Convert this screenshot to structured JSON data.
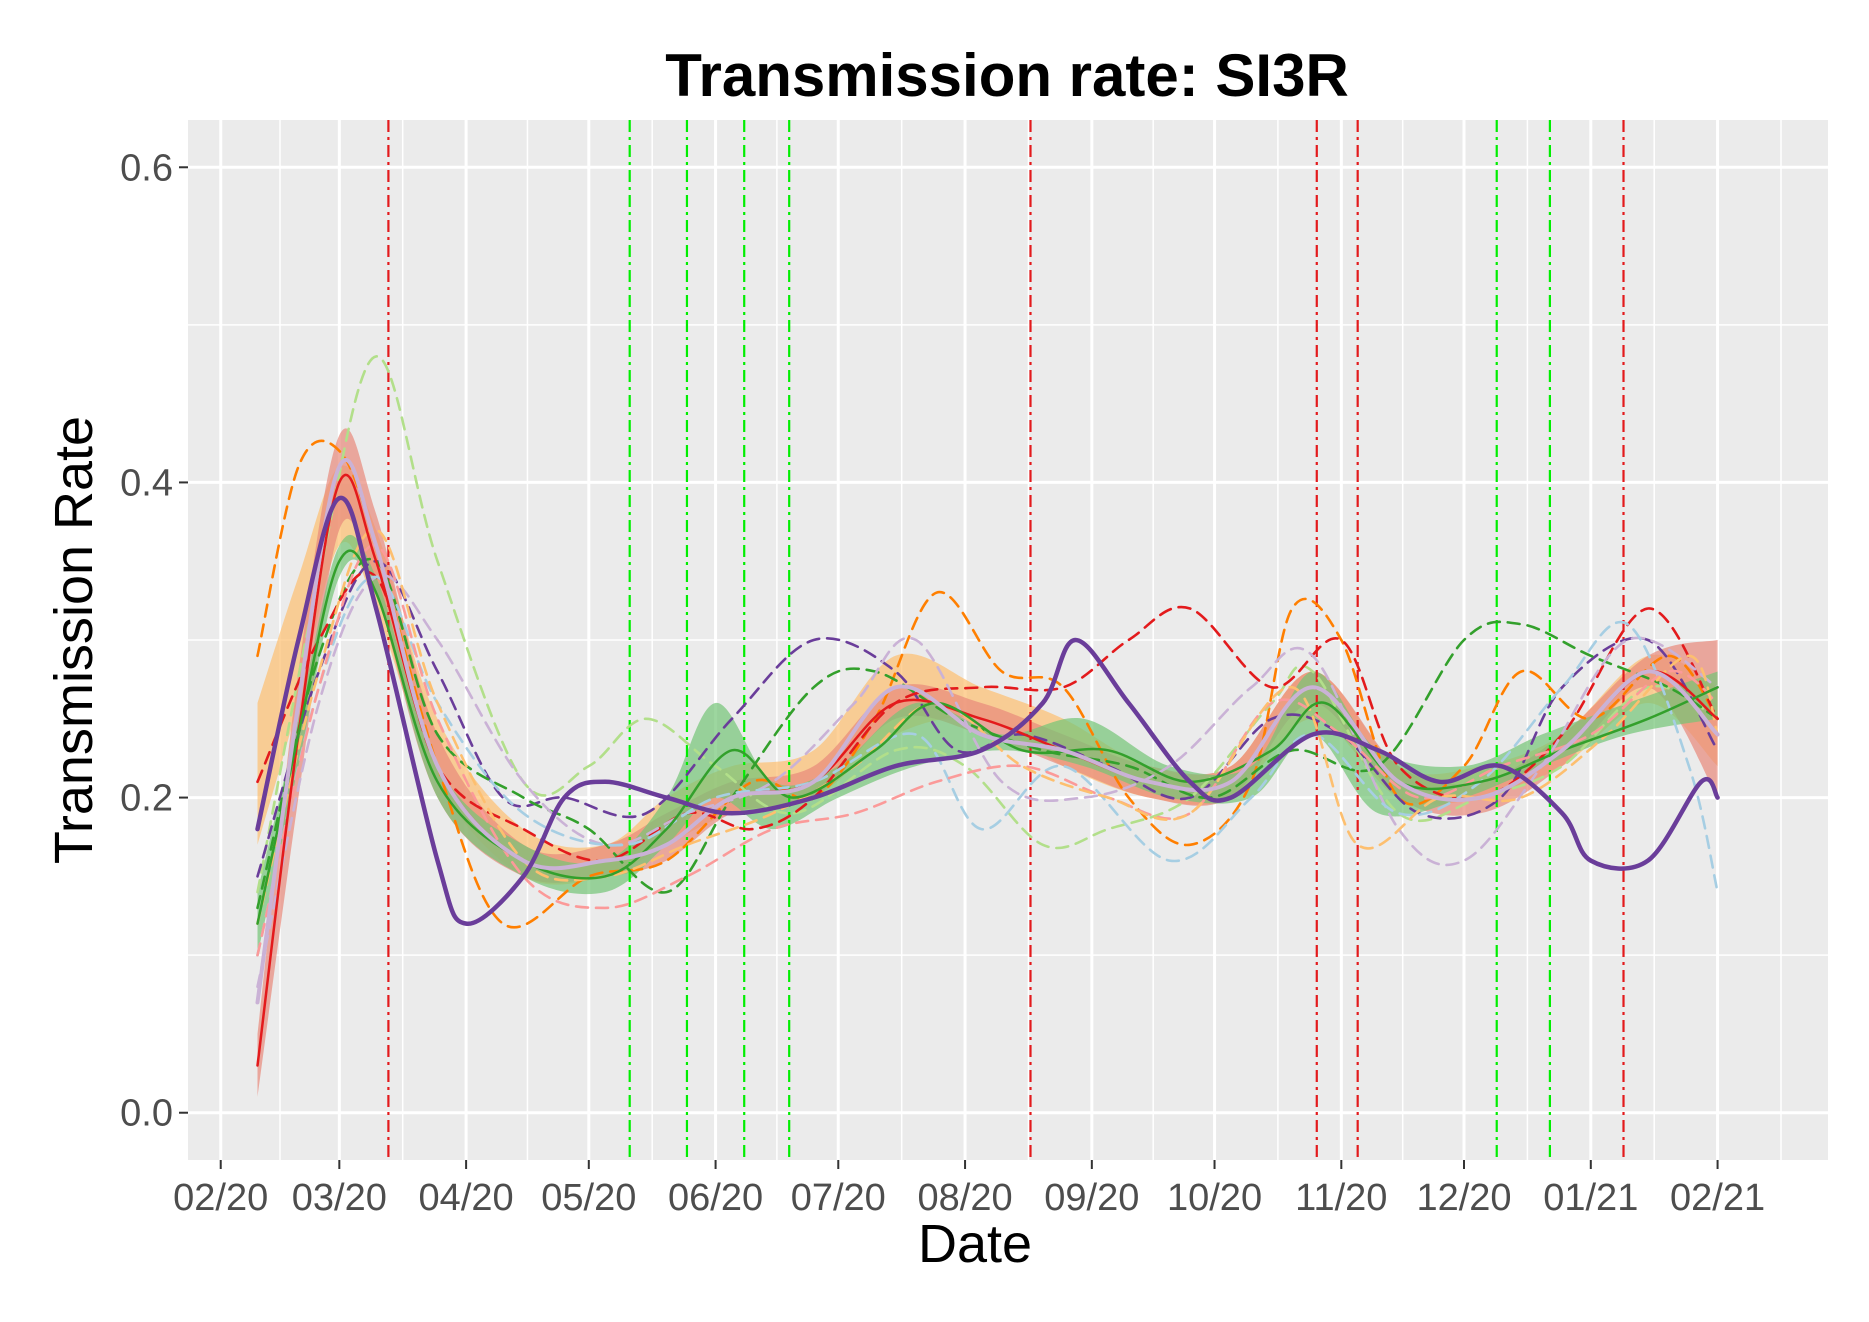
{
  "chart_data": {
    "type": "line",
    "title": "Transmission rate: SI3R",
    "xlabel": "Date",
    "ylabel": "Transmission Rate",
    "ylim": [
      -0.03,
      0.63
    ],
    "xlim": [
      "2020-01-24",
      "2021-02-28"
    ],
    "grid": true,
    "legend": "none",
    "y_ticks": [
      {
        "label": "0.0",
        "value": 0.0
      },
      {
        "label": "0.2",
        "value": 0.2
      },
      {
        "label": "0.4",
        "value": 0.4
      },
      {
        "label": "0.6",
        "value": 0.6
      }
    ],
    "x_ticks": [
      {
        "label": "02/20",
        "value": "2020-02-01"
      },
      {
        "label": "03/20",
        "value": "2020-03-01"
      },
      {
        "label": "04/20",
        "value": "2020-04-01"
      },
      {
        "label": "05/20",
        "value": "2020-05-01"
      },
      {
        "label": "06/20",
        "value": "2020-06-01"
      },
      {
        "label": "07/20",
        "value": "2020-07-01"
      },
      {
        "label": "08/20",
        "value": "2020-08-01"
      },
      {
        "label": "09/20",
        "value": "2020-09-01"
      },
      {
        "label": "10/20",
        "value": "2020-10-01"
      },
      {
        "label": "11/20",
        "value": "2020-11-01"
      },
      {
        "label": "12/20",
        "value": "2020-12-01"
      },
      {
        "label": "01/21",
        "value": "2021-01-01"
      },
      {
        "label": "02/21",
        "value": "2021-02-01"
      }
    ],
    "vlines": [
      {
        "date": "2020-03-13",
        "color": "#e31a1c"
      },
      {
        "date": "2020-05-11",
        "color": "#00ee00"
      },
      {
        "date": "2020-05-25",
        "color": "#00ee00"
      },
      {
        "date": "2020-06-08",
        "color": "#00ee00"
      },
      {
        "date": "2020-06-19",
        "color": "#00ee00"
      },
      {
        "date": "2020-08-17",
        "color": "#e31a1c"
      },
      {
        "date": "2020-10-26",
        "color": "#e31a1c"
      },
      {
        "date": "2020-11-05",
        "color": "#e31a1c"
      },
      {
        "date": "2020-12-09",
        "color": "#00ee00"
      },
      {
        "date": "2020-12-22",
        "color": "#00ee00"
      },
      {
        "date": "2021-01-09",
        "color": "#e31a1c"
      }
    ],
    "bands": [
      {
        "color": "#fdbf6f",
        "x": [
          "2020-02-10",
          "2020-02-20",
          "2020-03-01",
          "2020-03-10",
          "2020-03-25",
          "2020-04-15",
          "2020-05-05",
          "2020-05-20",
          "2020-06-05",
          "2020-06-25",
          "2020-07-15",
          "2020-08-05",
          "2020-08-25",
          "2020-09-15",
          "2020-10-05",
          "2020-10-25",
          "2020-11-15",
          "2020-12-05",
          "2020-12-25",
          "2021-01-15",
          "2021-02-01"
        ],
        "lower": [
          0.17,
          0.26,
          0.36,
          0.32,
          0.21,
          0.15,
          0.15,
          0.17,
          0.19,
          0.2,
          0.24,
          0.25,
          0.22,
          0.2,
          0.2,
          0.25,
          0.2,
          0.2,
          0.22,
          0.26,
          0.22
        ],
        "upper": [
          0.26,
          0.34,
          0.41,
          0.37,
          0.25,
          0.18,
          0.17,
          0.2,
          0.22,
          0.23,
          0.29,
          0.27,
          0.25,
          0.22,
          0.22,
          0.28,
          0.22,
          0.22,
          0.24,
          0.29,
          0.27
        ]
      },
      {
        "color": "#e8897a",
        "x": [
          "2020-02-10",
          "2020-02-20",
          "2020-03-01",
          "2020-03-10",
          "2020-03-25",
          "2020-04-15",
          "2020-05-05",
          "2020-05-20",
          "2020-06-05",
          "2020-06-25",
          "2020-07-15",
          "2020-08-05",
          "2020-08-25",
          "2020-09-15",
          "2020-10-05",
          "2020-10-25",
          "2020-11-15",
          "2020-12-05",
          "2020-12-25",
          "2021-01-15",
          "2021-02-01"
        ],
        "lower": [
          0.01,
          0.2,
          0.37,
          0.33,
          0.2,
          0.15,
          0.15,
          0.16,
          0.19,
          0.2,
          0.25,
          0.24,
          0.22,
          0.2,
          0.2,
          0.26,
          0.2,
          0.19,
          0.22,
          0.27,
          0.2
        ],
        "upper": [
          0.05,
          0.28,
          0.43,
          0.38,
          0.24,
          0.17,
          0.17,
          0.19,
          0.21,
          0.22,
          0.27,
          0.26,
          0.24,
          0.22,
          0.22,
          0.28,
          0.22,
          0.21,
          0.24,
          0.29,
          0.3
        ]
      },
      {
        "color": "#74c476",
        "x": [
          "2020-02-10",
          "2020-02-20",
          "2020-03-01",
          "2020-03-10",
          "2020-03-25",
          "2020-04-15",
          "2020-05-05",
          "2020-05-20",
          "2020-06-01",
          "2020-06-15",
          "2020-07-01",
          "2020-07-20",
          "2020-08-10",
          "2020-08-30",
          "2020-09-20",
          "2020-10-10",
          "2020-10-25",
          "2020-11-10",
          "2020-12-01",
          "2020-12-20",
          "2021-01-10",
          "2021-02-01"
        ],
        "lower": [
          0.1,
          0.22,
          0.34,
          0.33,
          0.2,
          0.15,
          0.14,
          0.17,
          0.2,
          0.18,
          0.2,
          0.22,
          0.23,
          0.22,
          0.2,
          0.2,
          0.24,
          0.19,
          0.2,
          0.22,
          0.24,
          0.25
        ],
        "upper": [
          0.14,
          0.25,
          0.36,
          0.34,
          0.22,
          0.17,
          0.16,
          0.2,
          0.26,
          0.21,
          0.22,
          0.26,
          0.24,
          0.25,
          0.22,
          0.22,
          0.28,
          0.23,
          0.22,
          0.24,
          0.26,
          0.28
        ]
      }
    ],
    "series": [
      {
        "color": "#ff7f00",
        "dash": true,
        "x": [
          "2020-02-10",
          "2020-02-20",
          "2020-03-01",
          "2020-03-10",
          "2020-03-25",
          "2020-04-10",
          "2020-05-01",
          "2020-05-20",
          "2020-06-10",
          "2020-06-25",
          "2020-07-10",
          "2020-07-25",
          "2020-08-10",
          "2020-08-25",
          "2020-09-10",
          "2020-09-25",
          "2020-10-10",
          "2020-10-20",
          "2020-11-01",
          "2020-11-15",
          "2020-12-01",
          "2020-12-15",
          "2021-01-01",
          "2021-01-20",
          "2021-02-01"
        ],
        "values": [
          0.29,
          0.41,
          0.42,
          0.36,
          0.22,
          0.12,
          0.15,
          0.16,
          0.21,
          0.2,
          0.25,
          0.33,
          0.28,
          0.27,
          0.2,
          0.17,
          0.21,
          0.32,
          0.3,
          0.2,
          0.22,
          0.28,
          0.25,
          0.29,
          0.25
        ]
      },
      {
        "color": "#b2df8a",
        "dash": true,
        "x": [
          "2020-02-10",
          "2020-02-25",
          "2020-03-10",
          "2020-03-25",
          "2020-04-15",
          "2020-05-01",
          "2020-05-15",
          "2020-06-01",
          "2020-06-20",
          "2020-07-15",
          "2020-08-01",
          "2020-08-20",
          "2020-09-05",
          "2020-09-25",
          "2020-10-15",
          "2020-10-25",
          "2020-11-15",
          "2020-12-05",
          "2020-12-25",
          "2021-01-15",
          "2021-02-01"
        ],
        "values": [
          0.14,
          0.34,
          0.48,
          0.35,
          0.21,
          0.22,
          0.25,
          0.22,
          0.19,
          0.23,
          0.22,
          0.17,
          0.18,
          0.2,
          0.26,
          0.28,
          0.19,
          0.2,
          0.22,
          0.27,
          0.25
        ]
      },
      {
        "color": "#6a3d9a",
        "dash": true,
        "x": [
          "2020-02-10",
          "2020-02-25",
          "2020-03-10",
          "2020-03-25",
          "2020-04-10",
          "2020-04-25",
          "2020-05-15",
          "2020-06-05",
          "2020-06-25",
          "2020-07-15",
          "2020-07-30",
          "2020-08-15",
          "2020-09-05",
          "2020-09-25",
          "2020-10-15",
          "2020-11-01",
          "2020-11-20",
          "2020-12-10",
          "2020-12-25",
          "2021-01-15",
          "2021-02-01"
        ],
        "values": [
          0.15,
          0.28,
          0.35,
          0.28,
          0.2,
          0.2,
          0.19,
          0.25,
          0.3,
          0.28,
          0.23,
          0.24,
          0.22,
          0.2,
          0.25,
          0.24,
          0.19,
          0.2,
          0.27,
          0.3,
          0.23
        ]
      },
      {
        "color": "#33a02c",
        "dash": true,
        "x": [
          "2020-02-10",
          "2020-02-25",
          "2020-03-10",
          "2020-03-25",
          "2020-04-15",
          "2020-05-01",
          "2020-05-20",
          "2020-06-05",
          "2020-06-25",
          "2020-07-10",
          "2020-07-30",
          "2020-08-20",
          "2020-09-10",
          "2020-09-30",
          "2020-10-20",
          "2020-11-10",
          "2020-12-01",
          "2020-12-15",
          "2021-01-01",
          "2021-01-20",
          "2021-02-01"
        ],
        "values": [
          0.13,
          0.29,
          0.35,
          0.24,
          0.2,
          0.18,
          0.14,
          0.2,
          0.27,
          0.28,
          0.25,
          0.23,
          0.22,
          0.2,
          0.23,
          0.22,
          0.3,
          0.31,
          0.29,
          0.27,
          0.25
        ]
      },
      {
        "color": "#e31a1c",
        "dash": true,
        "x": [
          "2020-02-10",
          "2020-02-25",
          "2020-03-10",
          "2020-03-25",
          "2020-04-15",
          "2020-05-05",
          "2020-05-25",
          "2020-06-10",
          "2020-06-25",
          "2020-07-15",
          "2020-08-05",
          "2020-08-25",
          "2020-09-10",
          "2020-09-25",
          "2020-10-15",
          "2020-11-01",
          "2020-11-15",
          "2020-12-05",
          "2020-12-25",
          "2021-01-15",
          "2021-02-01"
        ],
        "values": [
          0.21,
          0.3,
          0.34,
          0.22,
          0.18,
          0.16,
          0.19,
          0.18,
          0.2,
          0.26,
          0.27,
          0.27,
          0.3,
          0.32,
          0.27,
          0.3,
          0.22,
          0.2,
          0.24,
          0.32,
          0.25
        ]
      },
      {
        "color": "#cab2d6",
        "dash": true,
        "x": [
          "2020-02-10",
          "2020-02-25",
          "2020-03-10",
          "2020-03-25",
          "2020-04-15",
          "2020-05-05",
          "2020-05-25",
          "2020-06-15",
          "2020-07-05",
          "2020-07-20",
          "2020-08-10",
          "2020-08-30",
          "2020-09-20",
          "2020-10-10",
          "2020-10-25",
          "2020-11-15",
          "2020-12-01",
          "2020-12-20",
          "2021-01-10",
          "2021-02-01"
        ],
        "values": [
          0.08,
          0.26,
          0.34,
          0.3,
          0.21,
          0.17,
          0.19,
          0.21,
          0.26,
          0.3,
          0.21,
          0.2,
          0.22,
          0.27,
          0.29,
          0.18,
          0.16,
          0.22,
          0.3,
          0.27
        ]
      },
      {
        "color": "#a6cee3",
        "dash": true,
        "x": [
          "2020-02-10",
          "2020-02-25",
          "2020-03-10",
          "2020-03-25",
          "2020-04-15",
          "2020-05-10",
          "2020-06-01",
          "2020-06-25",
          "2020-07-20",
          "2020-08-05",
          "2020-08-25",
          "2020-09-20",
          "2020-10-10",
          "2020-10-25",
          "2020-11-15",
          "2020-12-05",
          "2020-12-25",
          "2021-01-10",
          "2021-01-25",
          "2021-02-01"
        ],
        "values": [
          0.1,
          0.27,
          0.34,
          0.26,
          0.19,
          0.17,
          0.2,
          0.21,
          0.24,
          0.18,
          0.22,
          0.16,
          0.2,
          0.24,
          0.19,
          0.21,
          0.27,
          0.31,
          0.22,
          0.14
        ]
      },
      {
        "color": "#fb9a99",
        "dash": true,
        "x": [
          "2020-02-10",
          "2020-02-25",
          "2020-03-10",
          "2020-03-25",
          "2020-04-15",
          "2020-05-05",
          "2020-05-25",
          "2020-06-15",
          "2020-07-05",
          "2020-07-25",
          "2020-08-15",
          "2020-09-05",
          "2020-09-25",
          "2020-10-15",
          "2020-11-01",
          "2020-11-20",
          "2020-12-10",
          "2021-01-01",
          "2021-01-20",
          "2021-02-01"
        ],
        "values": [
          0.1,
          0.27,
          0.36,
          0.25,
          0.15,
          0.13,
          0.15,
          0.18,
          0.19,
          0.21,
          0.22,
          0.2,
          0.19,
          0.26,
          0.24,
          0.2,
          0.22,
          0.24,
          0.28,
          0.26
        ]
      },
      {
        "color": "#fdbf6f",
        "dash": true,
        "x": [
          "2020-02-10",
          "2020-02-25",
          "2020-03-10",
          "2020-03-25",
          "2020-04-15",
          "2020-05-05",
          "2020-05-25",
          "2020-06-15",
          "2020-07-05",
          "2020-07-25",
          "2020-08-15",
          "2020-09-05",
          "2020-09-25",
          "2020-10-20",
          "2020-11-05",
          "2020-11-25",
          "2020-12-15",
          "2021-01-05",
          "2021-01-25",
          "2021-02-01"
        ],
        "values": [
          0.12,
          0.28,
          0.37,
          0.26,
          0.16,
          0.15,
          0.17,
          0.19,
          0.22,
          0.26,
          0.22,
          0.2,
          0.19,
          0.27,
          0.17,
          0.2,
          0.2,
          0.24,
          0.29,
          0.24
        ]
      },
      {
        "color": "#e31a1c",
        "dash": false,
        "width": 2.5,
        "x": [
          "2020-02-10",
          "2020-02-20",
          "2020-03-01",
          "2020-03-10",
          "2020-03-25",
          "2020-04-15",
          "2020-05-05",
          "2020-05-20",
          "2020-06-05",
          "2020-06-25",
          "2020-07-15",
          "2020-08-05",
          "2020-08-25",
          "2020-09-15",
          "2020-10-05",
          "2020-10-25",
          "2020-11-15",
          "2020-12-05",
          "2020-12-25",
          "2021-01-15",
          "2021-02-01"
        ],
        "values": [
          0.03,
          0.24,
          0.4,
          0.35,
          0.22,
          0.16,
          0.16,
          0.17,
          0.2,
          0.21,
          0.26,
          0.25,
          0.23,
          0.21,
          0.21,
          0.27,
          0.21,
          0.2,
          0.23,
          0.28,
          0.25
        ]
      },
      {
        "color": "#33a02c",
        "dash": false,
        "width": 2.5,
        "x": [
          "2020-02-10",
          "2020-02-20",
          "2020-03-01",
          "2020-03-10",
          "2020-03-25",
          "2020-04-15",
          "2020-05-05",
          "2020-05-20",
          "2020-06-05",
          "2020-06-20",
          "2020-07-10",
          "2020-07-25",
          "2020-08-15",
          "2020-09-05",
          "2020-09-25",
          "2020-10-15",
          "2020-10-28",
          "2020-11-15",
          "2020-12-05",
          "2020-12-25",
          "2021-01-15",
          "2021-02-01"
        ],
        "values": [
          0.12,
          0.24,
          0.35,
          0.33,
          0.21,
          0.16,
          0.15,
          0.18,
          0.23,
          0.2,
          0.23,
          0.26,
          0.23,
          0.23,
          0.21,
          0.23,
          0.26,
          0.21,
          0.21,
          0.23,
          0.25,
          0.27
        ]
      },
      {
        "color": "#cab2d6",
        "dash": false,
        "width": 4,
        "x": [
          "2020-02-10",
          "2020-02-20",
          "2020-03-01",
          "2020-03-10",
          "2020-03-25",
          "2020-04-15",
          "2020-05-05",
          "2020-05-20",
          "2020-06-05",
          "2020-06-25",
          "2020-07-15",
          "2020-08-05",
          "2020-08-25",
          "2020-09-15",
          "2020-10-05",
          "2020-10-25",
          "2020-11-15",
          "2020-12-05",
          "2020-12-25",
          "2021-01-15",
          "2021-02-01"
        ],
        "values": [
          0.07,
          0.26,
          0.41,
          0.36,
          0.22,
          0.16,
          0.16,
          0.17,
          0.2,
          0.21,
          0.27,
          0.24,
          0.23,
          0.21,
          0.21,
          0.27,
          0.21,
          0.2,
          0.23,
          0.28,
          0.24
        ]
      },
      {
        "color": "#6a3d9a",
        "dash": false,
        "width": 4.5,
        "x": [
          "2020-02-10",
          "2020-02-20",
          "2020-03-01",
          "2020-03-10",
          "2020-03-25",
          "2020-04-01",
          "2020-04-15",
          "2020-04-25",
          "2020-05-05",
          "2020-05-20",
          "2020-06-05",
          "2020-06-25",
          "2020-07-15",
          "2020-08-05",
          "2020-08-20",
          "2020-08-28",
          "2020-09-10",
          "2020-09-25",
          "2020-10-05",
          "2020-10-25",
          "2020-11-10",
          "2020-11-25",
          "2020-12-10",
          "2020-12-25",
          "2021-01-01",
          "2021-01-15",
          "2021-01-28",
          "2021-02-01"
        ],
        "values": [
          0.18,
          0.3,
          0.39,
          0.32,
          0.16,
          0.12,
          0.15,
          0.2,
          0.21,
          0.2,
          0.19,
          0.2,
          0.22,
          0.23,
          0.26,
          0.3,
          0.26,
          0.21,
          0.2,
          0.24,
          0.23,
          0.21,
          0.22,
          0.19,
          0.16,
          0.16,
          0.21,
          0.2
        ]
      }
    ]
  }
}
